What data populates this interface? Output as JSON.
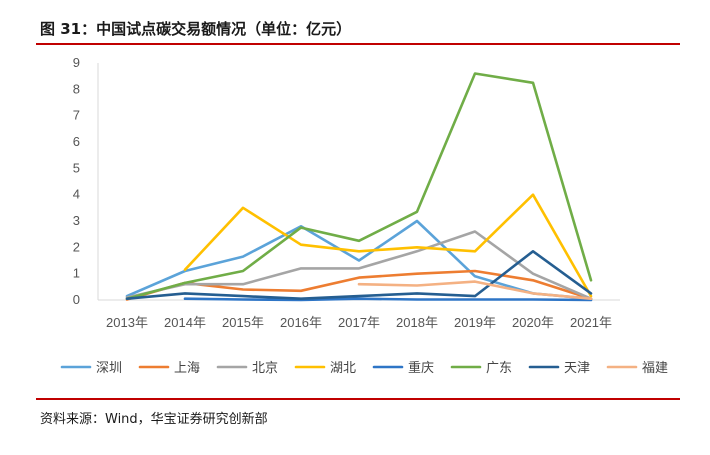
{
  "header": {
    "title": "图 31：中国试点碳交易额情况（单位：亿元）"
  },
  "footer": {
    "source": "资料来源：Wind，华宝证券研究创新部"
  },
  "chart_data": {
    "type": "line",
    "categories": [
      "2013年",
      "2014年",
      "2015年",
      "2016年",
      "2017年",
      "2018年",
      "2019年",
      "2020年",
      "2021年"
    ],
    "ylim": [
      0,
      9
    ],
    "yticks": [
      0,
      1,
      2,
      3,
      4,
      5,
      6,
      7,
      8,
      9
    ],
    "grid": false,
    "legend_position": "bottom",
    "series": [
      {
        "name": "深圳",
        "color": "#5ba3d9",
        "values": [
          0.15,
          1.1,
          1.65,
          2.8,
          1.5,
          3.0,
          0.9,
          0.25,
          0.05
        ]
      },
      {
        "name": "上海",
        "color": "#ed7d31",
        "values": [
          0.02,
          0.65,
          0.4,
          0.35,
          0.85,
          1.0,
          1.1,
          0.75,
          0.05
        ]
      },
      {
        "name": "北京",
        "color": "#a5a5a5",
        "values": [
          0.1,
          0.6,
          0.6,
          1.2,
          1.2,
          1.85,
          2.6,
          1.0,
          0.05
        ]
      },
      {
        "name": "湖北",
        "color": "#ffc000",
        "values": [
          null,
          1.15,
          3.5,
          2.1,
          1.85,
          2.0,
          1.85,
          4.0,
          0.15
        ]
      },
      {
        "name": "重庆",
        "color": "#2e75c6",
        "values": [
          null,
          0.05,
          0.02,
          0.0,
          0.05,
          0.02,
          0.02,
          0.02,
          0.0
        ]
      },
      {
        "name": "广东",
        "color": "#70ad47",
        "values": [
          0.05,
          0.65,
          1.1,
          2.75,
          2.25,
          3.35,
          8.6,
          8.25,
          0.75
        ]
      },
      {
        "name": "天津",
        "color": "#255e91",
        "values": [
          0.05,
          0.25,
          0.15,
          0.05,
          0.15,
          0.25,
          0.15,
          1.85,
          0.25
        ]
      },
      {
        "name": "福建",
        "color": "#f4b183",
        "values": [
          null,
          null,
          null,
          null,
          0.6,
          0.55,
          0.7,
          0.25,
          0.05
        ]
      }
    ]
  }
}
